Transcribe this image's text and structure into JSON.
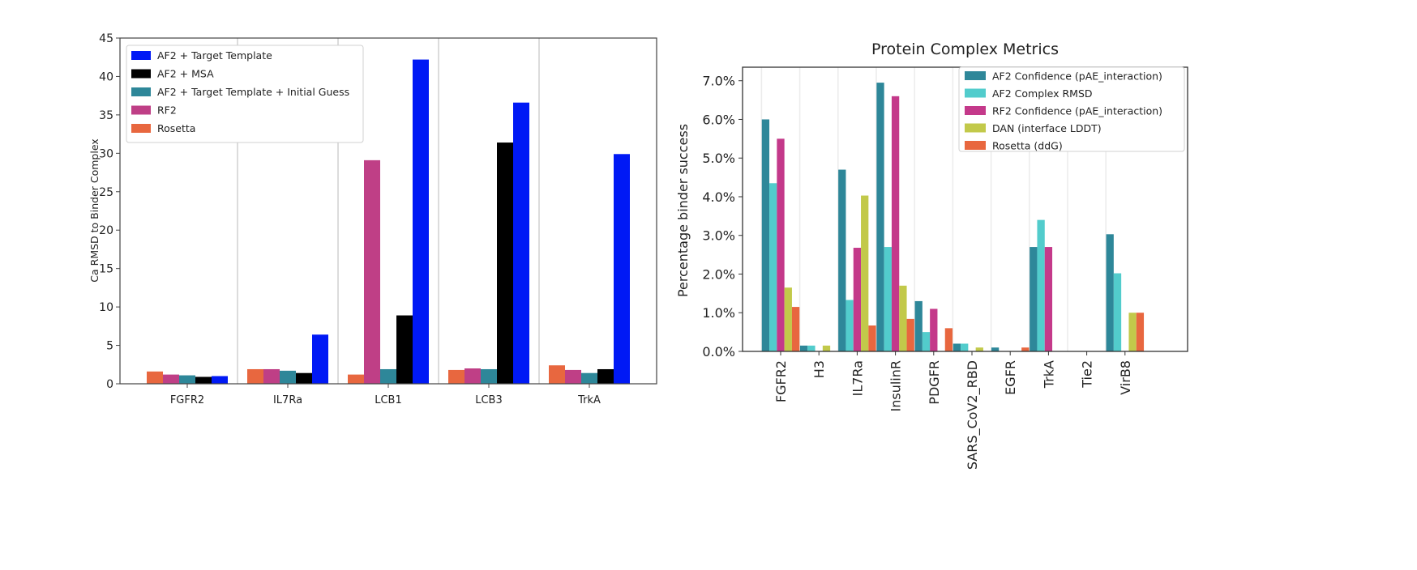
{
  "chart_data": [
    {
      "type": "bar",
      "title": "",
      "xlabel": "",
      "ylabel": "Ca RMSD to Binder Complex",
      "ylim": [
        0,
        45
      ],
      "yticks": [
        0,
        5,
        10,
        15,
        20,
        25,
        30,
        35,
        40,
        45
      ],
      "legend_position": "top-left",
      "legend_order": [
        "AF2 + Target Template",
        "AF2 + MSA",
        "AF2 + Target Template + Initial Guess",
        "RF2",
        "Rosetta"
      ],
      "categories": [
        "FGFR2",
        "IL7Ra",
        "LCB1",
        "LCB3",
        "TrkA"
      ],
      "series": [
        {
          "name": "Rosetta",
          "color": "#e8673f",
          "values": [
            1.6,
            1.9,
            1.2,
            1.8,
            2.4
          ]
        },
        {
          "name": "RF2",
          "color": "#bf3f86",
          "values": [
            1.2,
            1.9,
            29.1,
            2.0,
            1.8
          ]
        },
        {
          "name": "AF2 + Target Template + Initial Guess",
          "color": "#2e8799",
          "values": [
            1.1,
            1.7,
            1.9,
            1.9,
            1.4
          ]
        },
        {
          "name": "AF2 + MSA",
          "color": "#000000",
          "values": [
            0.9,
            1.4,
            8.9,
            31.4,
            1.9
          ]
        },
        {
          "name": "AF2 + Target Template",
          "color": "#0019f5",
          "values": [
            1.0,
            6.4,
            42.2,
            36.6,
            29.9
          ]
        }
      ]
    },
    {
      "type": "bar",
      "title": "Protein Complex Metrics",
      "xlabel": "",
      "ylabel": "Percentage binder success",
      "ylim": [
        0,
        7.35
      ],
      "yticks": [
        0,
        1,
        2,
        3,
        4,
        5,
        6,
        7
      ],
      "ytick_labels": [
        "0.0%",
        "1.0%",
        "2.0%",
        "3.0%",
        "4.0%",
        "5.0%",
        "6.0%",
        "7.0%"
      ],
      "legend_position": "top-right",
      "categories": [
        "FGFR2",
        "H3",
        "IL7Ra",
        "InsulinR",
        "PDGFR",
        "SARS_CoV2_RBD",
        "EGFR",
        "TrkA",
        "Tie2",
        "VirB8"
      ],
      "series": [
        {
          "name": "AF2 Confidence (pAE_interaction)",
          "color": "#2e8799",
          "values": [
            6.0,
            0.15,
            4.7,
            6.95,
            1.3,
            0.2,
            0.1,
            2.7,
            0,
            3.03
          ]
        },
        {
          "name": "AF2 Complex RMSD",
          "color": "#52cccc",
          "values": [
            4.35,
            0.15,
            1.33,
            2.7,
            0.5,
            0.2,
            0,
            3.4,
            0,
            2.02
          ]
        },
        {
          "name": "RF2 Confidence (pAE_interaction)",
          "color": "#c4398a",
          "values": [
            5.5,
            0,
            2.68,
            6.6,
            1.1,
            0,
            0,
            2.7,
            0,
            0
          ]
        },
        {
          "name": "DAN (interface LDDT)",
          "color": "#c2c94a",
          "values": [
            1.65,
            0.15,
            4.03,
            1.7,
            0,
            0.1,
            0,
            0,
            0,
            1.0
          ]
        },
        {
          "name": "Rosetta (ddG)",
          "color": "#e8673f",
          "values": [
            1.15,
            0,
            0.67,
            0.84,
            0.6,
            0,
            0.1,
            0,
            0,
            1.0
          ]
        }
      ]
    }
  ]
}
